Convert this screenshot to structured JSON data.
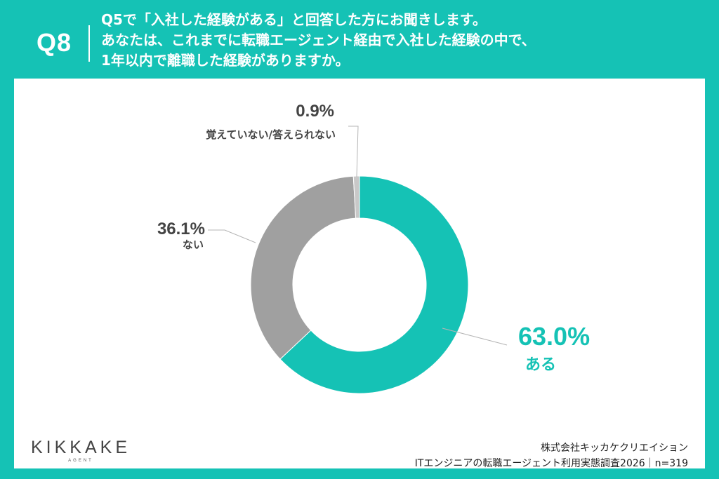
{
  "header": {
    "qnum": "Q8",
    "question_lines": [
      "Q5で「入社した経験がある」と回答した方にお聞きします。",
      "あなたは、これまでに転職エージェント経由で入社した経験の中で、",
      "1年以内で離職した経験がありますか。"
    ]
  },
  "chart_data": {
    "type": "pie",
    "donut": true,
    "slices": [
      {
        "pct_label": "63.0%",
        "label": "ある",
        "value": 63.0,
        "color": "#15c2b5",
        "label_color": "#15c2b5"
      },
      {
        "pct_label": "36.1%",
        "label": "ない",
        "value": 36.1,
        "color": "#a0a0a0",
        "label_color": "#444444"
      },
      {
        "pct_label": "0.9%",
        "label": "覚えていない/答えられない",
        "value": 0.9,
        "color": "#c8c8c8",
        "label_color": "#444444"
      }
    ]
  },
  "footer": {
    "logo_main": "KIKKAKE",
    "logo_sub": "AGENT",
    "source_line1": "株式会社キッカケクリエイション",
    "source_line2": "ITエンジニアの転職エージェント利用実態調査2026｜n=319"
  }
}
